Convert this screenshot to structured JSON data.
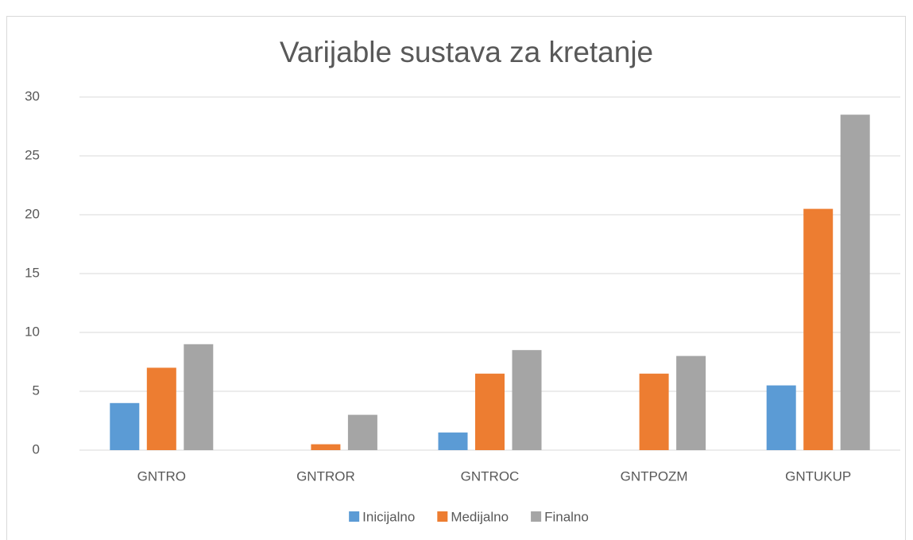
{
  "chart_data": {
    "type": "bar",
    "title": "Varijable sustava za kretanje",
    "categories": [
      "GNTRO",
      "GNTROR",
      "GNTROC",
      "GNTPOZM",
      "GNTUKUP"
    ],
    "series": [
      {
        "name": "Inicijalno",
        "color": "#5b9bd5",
        "values": [
          4,
          0,
          1.5,
          0,
          5.5
        ]
      },
      {
        "name": "Medijalno",
        "color": "#ed7d31",
        "values": [
          7,
          0.5,
          6.5,
          6.5,
          20.5
        ]
      },
      {
        "name": "Finalno",
        "color": "#a5a5a5",
        "values": [
          9,
          3,
          8.5,
          8,
          28.5
        ]
      }
    ],
    "ylim": [
      0,
      30
    ],
    "yticks": [
      0,
      5,
      10,
      15,
      20,
      25,
      30
    ],
    "grid": true,
    "legend": "bottom"
  }
}
